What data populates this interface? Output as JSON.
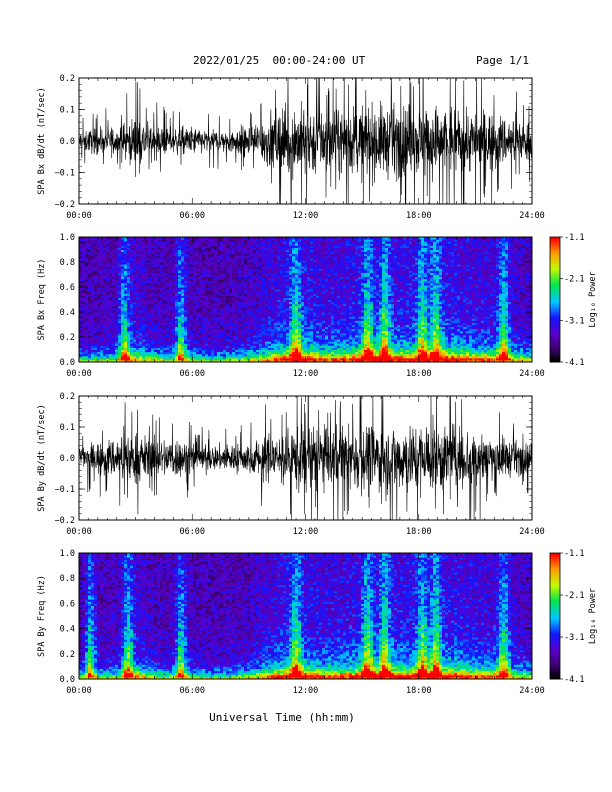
{
  "header": {
    "title": "2022/01/25  00:00-24:00 UT",
    "page": "Page 1/1"
  },
  "xaxis_label": "Universal Time (hh:mm)",
  "time_ticks": [
    "00:00",
    "06:00",
    "12:00",
    "18:00",
    "24:00"
  ],
  "colorbar": {
    "label": "Log₁₀ Power",
    "ticks": [
      "-1.1",
      "-2.1",
      "-3.1",
      "-4.1"
    ],
    "range": [
      -4.1,
      -1.1
    ]
  },
  "chart_data": [
    {
      "type": "line",
      "ylabel": "SPA Bx dB/dt (nT/sec)",
      "xlim": [
        0,
        24
      ],
      "ylim": [
        -0.2,
        0.2
      ],
      "yticks": [
        "0.2",
        "0.1",
        "0.0",
        "−0.1",
        "−0.2"
      ],
      "envelope": {
        "x": [
          0,
          1,
          2,
          3,
          4,
          5,
          6,
          7,
          8,
          9,
          10,
          11,
          12,
          13,
          14,
          15,
          16,
          17,
          18,
          19,
          20,
          21,
          22,
          23,
          24
        ],
        "amplitude": [
          0.06,
          0.07,
          0.08,
          0.14,
          0.09,
          0.07,
          0.08,
          0.06,
          0.07,
          0.09,
          0.15,
          0.2,
          0.2,
          0.17,
          0.18,
          0.2,
          0.2,
          0.2,
          0.2,
          0.2,
          0.2,
          0.17,
          0.16,
          0.12,
          0.1
        ]
      }
    },
    {
      "type": "heatmap",
      "ylabel": "SPA Bx Freq (Hz)",
      "xlim": [
        0,
        24
      ],
      "ylim": [
        0,
        1.0
      ],
      "yticks": [
        "1.0",
        "0.8",
        "0.6",
        "0.4",
        "0.2",
        "0.0"
      ],
      "bursts_hours": [
        2.4,
        5.4,
        11.5,
        15.3,
        16.2,
        18.2,
        18.9,
        22.5
      ]
    },
    {
      "type": "line",
      "ylabel": "SPA By dB/dt (nT/sec)",
      "xlim": [
        0,
        24
      ],
      "ylim": [
        -0.2,
        0.2
      ],
      "yticks": [
        "0.2",
        "0.1",
        "0.0",
        "−0.1",
        "−0.2"
      ],
      "envelope": {
        "x": [
          0,
          1,
          2,
          3,
          4,
          5,
          6,
          7,
          8,
          9,
          10,
          11,
          12,
          13,
          14,
          15,
          16,
          17,
          18,
          19,
          20,
          21,
          22,
          23,
          24
        ],
        "amplitude": [
          0.07,
          0.09,
          0.12,
          0.15,
          0.1,
          0.12,
          0.09,
          0.07,
          0.08,
          0.09,
          0.13,
          0.16,
          0.2,
          0.18,
          0.17,
          0.2,
          0.2,
          0.2,
          0.2,
          0.2,
          0.19,
          0.16,
          0.13,
          0.1,
          0.08
        ]
      }
    },
    {
      "type": "heatmap",
      "ylabel": "SPA By Freq (Hz)",
      "xlim": [
        0,
        24
      ],
      "ylim": [
        0,
        1.0
      ],
      "yticks": [
        "1.0",
        "0.8",
        "0.6",
        "0.4",
        "0.2",
        "0.0"
      ],
      "bursts_hours": [
        0.6,
        2.6,
        5.4,
        11.5,
        15.3,
        16.2,
        18.2,
        18.9,
        22.5
      ]
    }
  ]
}
